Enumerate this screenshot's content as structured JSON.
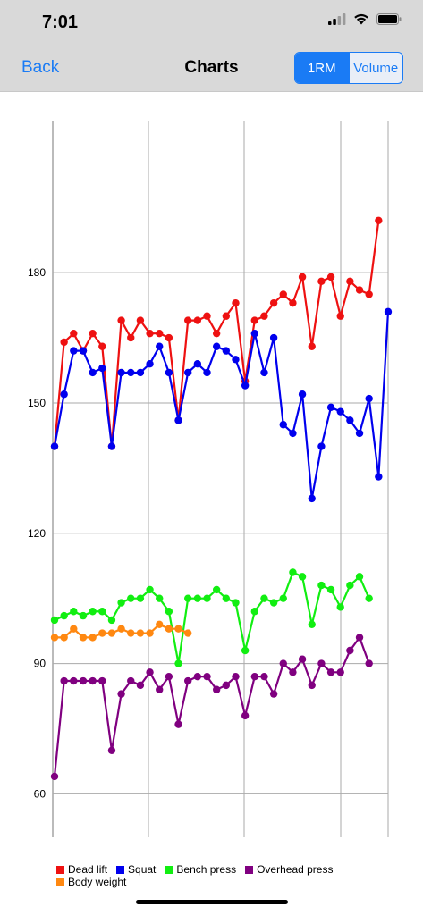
{
  "status": {
    "time": "7:01"
  },
  "nav": {
    "back_label": "Back",
    "title": "Charts",
    "segments": [
      "1RM",
      "Volume"
    ],
    "selected_segment": "1RM"
  },
  "colors": {
    "dead_lift": "#ee1111",
    "squat": "#0000ee",
    "bench_press": "#11ee11",
    "overhead_press": "#800080",
    "body_weight": "#ff8811",
    "accent": "#1a7bf5"
  },
  "chart_data": {
    "type": "line",
    "ylim": [
      50,
      215
    ],
    "yticks": [
      60,
      90,
      120,
      150,
      180
    ],
    "ytick_labels": [
      "60",
      "90",
      "120",
      "150",
      "180"
    ],
    "x_range": [
      0,
      35
    ],
    "grid": true,
    "legend_position": "bottom",
    "series": [
      {
        "key": "dead_lift",
        "name": "Dead lift",
        "x": [
          0,
          1,
          2,
          3,
          4,
          5,
          6,
          7,
          8,
          9,
          10,
          11,
          12,
          13,
          14,
          15,
          16,
          17,
          18,
          19,
          20,
          21,
          22,
          23,
          24,
          25,
          26,
          27,
          28,
          29,
          30,
          31,
          32,
          33,
          34
        ],
        "values": [
          140,
          164,
          166,
          162,
          166,
          163,
          140,
          169,
          165,
          169,
          166,
          166,
          165,
          146,
          169,
          169,
          170,
          166,
          170,
          173,
          155,
          169,
          170,
          173,
          175,
          173,
          179,
          163,
          178,
          179,
          170,
          178,
          176,
          175,
          192
        ]
      },
      {
        "key": "squat",
        "name": "Squat",
        "x": [
          0,
          1,
          2,
          3,
          4,
          5,
          6,
          7,
          8,
          9,
          10,
          11,
          12,
          13,
          14,
          15,
          16,
          17,
          18,
          19,
          20,
          21,
          22,
          23,
          24,
          25,
          26,
          27,
          28,
          29,
          30,
          31,
          32,
          33,
          34,
          35
        ],
        "values": [
          140,
          152,
          162,
          162,
          157,
          158,
          140,
          157,
          157,
          157,
          159,
          163,
          157,
          146,
          157,
          159,
          157,
          163,
          162,
          160,
          154,
          166,
          157,
          165,
          145,
          143,
          152,
          128,
          140,
          149,
          148,
          146,
          143,
          151,
          133,
          171
        ]
      },
      {
        "key": "bench_press",
        "name": "Bench press",
        "x": [
          0,
          1,
          2,
          3,
          4,
          5,
          6,
          7,
          8,
          9,
          10,
          11,
          12,
          13,
          14,
          15,
          16,
          17,
          18,
          19,
          20,
          21,
          22,
          23,
          24,
          25,
          26,
          27,
          28,
          29,
          30,
          31,
          32,
          33
        ],
        "values": [
          100,
          101,
          102,
          101,
          102,
          102,
          100,
          104,
          105,
          105,
          107,
          105,
          102,
          90,
          105,
          105,
          105,
          107,
          105,
          104,
          93,
          102,
          105,
          104,
          105,
          111,
          110,
          99,
          108,
          107,
          103,
          108,
          110,
          105
        ]
      },
      {
        "key": "overhead_press",
        "name": "Overhead press",
        "x": [
          0,
          1,
          2,
          3,
          4,
          5,
          6,
          7,
          8,
          9,
          10,
          11,
          12,
          13,
          14,
          15,
          16,
          17,
          18,
          19,
          20,
          21,
          22,
          23,
          24,
          25,
          26,
          27,
          28,
          29,
          30,
          31,
          32,
          33
        ],
        "values": [
          64,
          86,
          86,
          86,
          86,
          86,
          70,
          83,
          86,
          85,
          88,
          84,
          87,
          76,
          86,
          87,
          87,
          84,
          85,
          87,
          78,
          87,
          87,
          83,
          90,
          88,
          91,
          85,
          90,
          88,
          88,
          93,
          96,
          90
        ]
      },
      {
        "key": "body_weight",
        "name": "Body weight",
        "x": [
          0,
          1,
          2,
          3,
          4,
          5,
          6,
          7,
          8,
          9,
          10,
          11,
          12,
          13,
          14
        ],
        "values": [
          96,
          96,
          98,
          96,
          96,
          97,
          97,
          98,
          97,
          97,
          97,
          99,
          98,
          98,
          97
        ]
      }
    ]
  },
  "legend": {
    "items": [
      "Dead lift",
      "Squat",
      "Bench press",
      "Overhead press",
      "Body weight"
    ]
  }
}
